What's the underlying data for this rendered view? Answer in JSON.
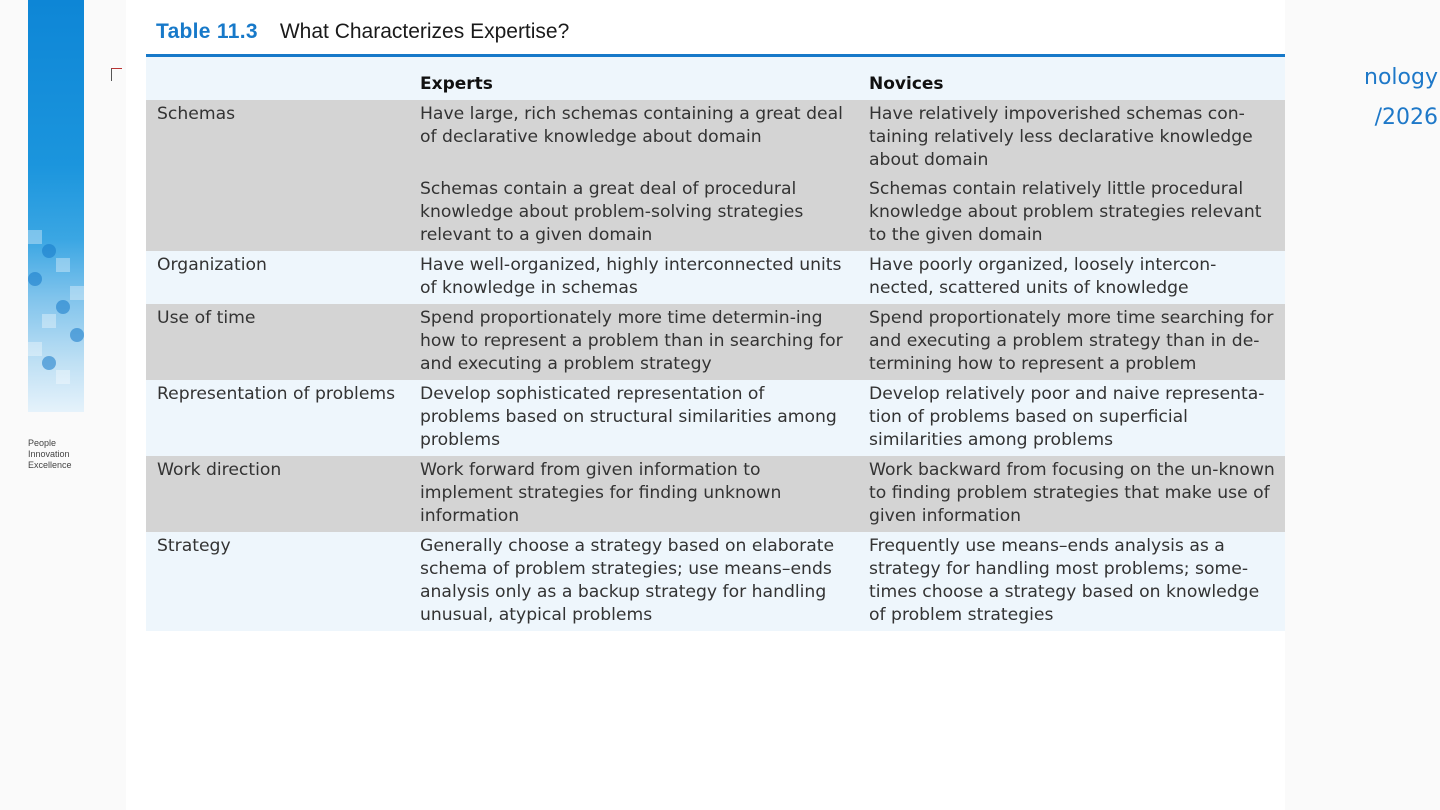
{
  "brand": {
    "tagline": [
      "People",
      "Innovation",
      "Excellence"
    ]
  },
  "slide_header": {
    "line1": "nology",
    "line2": "/2026"
  },
  "document": {
    "table_number": "Table 11.3",
    "table_title": "What Characterizes Expertise?",
    "columns": [
      "",
      "Experts",
      "Novices"
    ],
    "rows": [
      {
        "label": "Schemas",
        "experts": "Have large, rich schemas containing a great deal of declarative knowledge about domain",
        "novices": "Have relatively impoverished schemas con-taining relatively less declarative knowledge about domain"
      },
      {
        "label": "",
        "experts": "Schemas contain a great deal of procedural knowledge about problem-solving strategies relevant to a given domain",
        "novices": "Schemas contain relatively little procedural knowledge about problem strategies relevant to the given domain"
      },
      {
        "label": "Organization",
        "experts": "Have well-organized, highly interconnected units of knowledge in schemas",
        "novices": "Have poorly organized, loosely intercon-nected, scattered units of knowledge"
      },
      {
        "label": "Use of time",
        "experts": "Spend proportionately more time determin-ing how to represent a problem than in searching for and executing a problem strategy",
        "novices": "Spend proportionately more time searching for and executing a problem strategy than in de-termining how to represent a problem"
      },
      {
        "label": "Representation of problems",
        "experts": "Develop sophisticated representation of problems based on structural similarities among problems",
        "novices": "Develop relatively poor and naive representa-tion of problems based on superficial similarities among problems"
      },
      {
        "label": "Work direction",
        "experts": "Work forward from given information to implement strategies for finding unknown information",
        "novices": "Work backward from focusing on the un-known to finding problem strategies that make use of given information"
      },
      {
        "label": "Strategy",
        "experts": "Generally choose a strategy based on elaborate schema of problem strategies; use means–ends analysis only as a backup strategy for handling unusual, atypical problems",
        "novices": "Frequently use means–ends analysis as a strategy for handling most problems; some-times choose a strategy based on knowledge of problem strategies"
      }
    ]
  }
}
